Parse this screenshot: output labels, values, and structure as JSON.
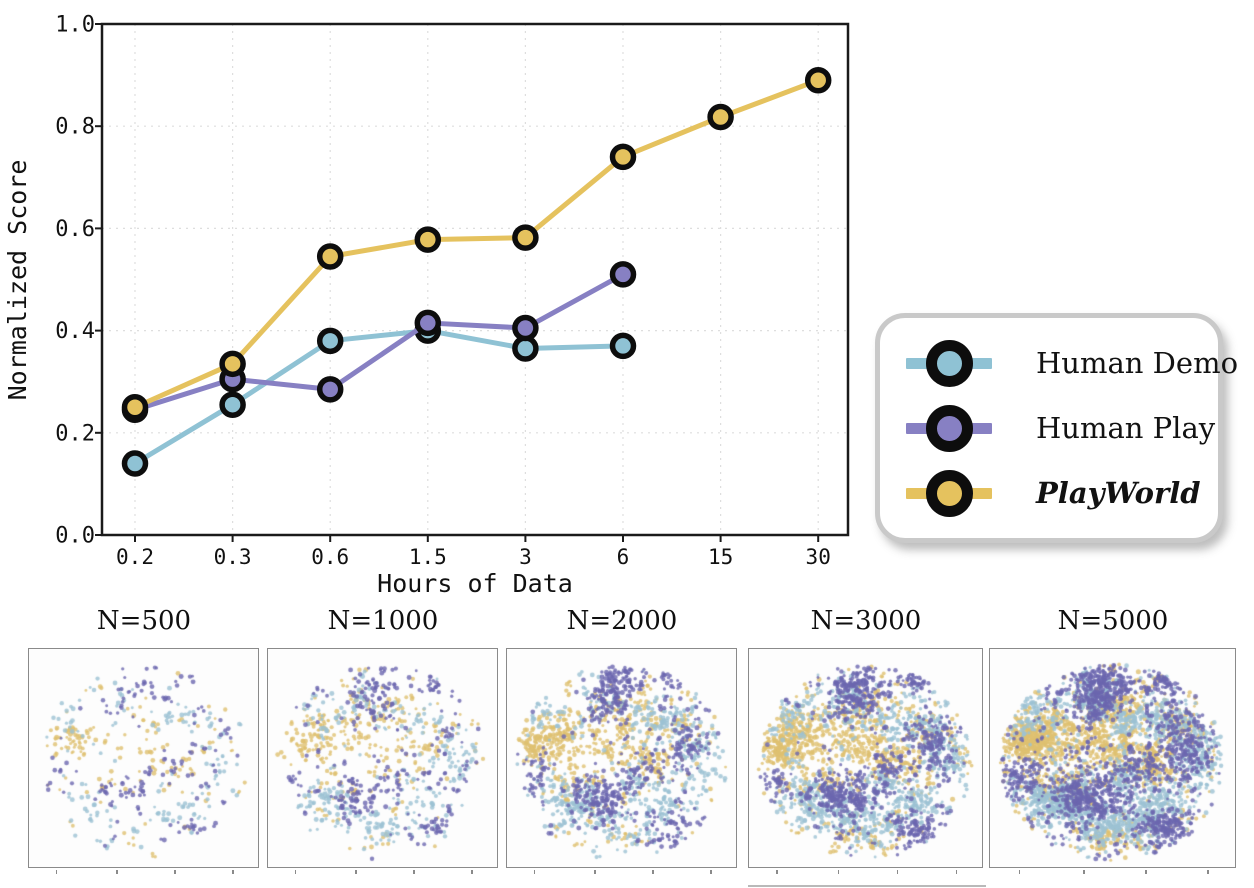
{
  "colors": {
    "human_demo": "#8FC2D4",
    "human_play": "#8780C3",
    "playworld": "#E5C25E",
    "marker_edge": "#0d0d0d",
    "grid": "#dedede",
    "spine": "#1a1a1a",
    "panel_border": "#8a8a8a",
    "legend_border": "#c9c9c9"
  },
  "chart_data": [
    {
      "type": "line",
      "title": "",
      "xlabel": "Hours of Data",
      "ylabel": "Normalized Score",
      "x_scale": "log-like categorical (evenly spaced ticks)",
      "categories": [
        "0.2",
        "0.3",
        "0.6",
        "1.5",
        "3",
        "6",
        "15",
        "30"
      ],
      "y_ticks": [
        "0.0",
        "0.2",
        "0.4",
        "0.6",
        "0.8",
        "1.0"
      ],
      "ylim": [
        0,
        1
      ],
      "grid": true,
      "legend_position": "outside-right-box",
      "series": [
        {
          "name": "Human Demo",
          "color": "#8FC2D4",
          "values": [
            0.14,
            0.255,
            0.38,
            0.4,
            0.365,
            0.37,
            null,
            null
          ]
        },
        {
          "name": "Human Play",
          "color": "#8780C3",
          "values": [
            0.245,
            0.305,
            0.285,
            0.415,
            0.405,
            0.51,
            null,
            null
          ]
        },
        {
          "name": "PlayWorld",
          "color": "#E5C25E",
          "values": [
            0.25,
            0.335,
            0.545,
            0.578,
            0.582,
            0.74,
            0.818,
            0.89
          ]
        }
      ]
    },
    {
      "type": "scatter",
      "subtype": "t-SNE embedding panels, subsampled dataset sizes",
      "panels": [
        {
          "label": "N=500",
          "n": 500
        },
        {
          "label": "N=1000",
          "n": 1000
        },
        {
          "label": "N=2000",
          "n": 2000
        },
        {
          "label": "N=3000",
          "n": 3000
        },
        {
          "label": "N=5000",
          "n": 5000
        }
      ],
      "point_colors": {
        "human_demo": "#9CC2D3",
        "human_play": "#6C66AF",
        "playworld": "#DFC170"
      },
      "blob": {
        "cx": 0.5,
        "cy": 0.52,
        "rx": 0.46,
        "ry": 0.45
      },
      "clusters": {
        "playworld": [
          [
            0.16,
            0.44,
            0.055,
            0.045,
            2.2
          ],
          [
            0.24,
            0.36,
            0.06,
            0.05,
            1.2
          ],
          [
            0.46,
            0.44,
            0.09,
            0.06,
            1.6
          ],
          [
            0.5,
            0.28,
            0.07,
            0.05,
            1.2
          ],
          [
            0.63,
            0.52,
            0.06,
            0.05,
            1.0
          ],
          [
            0.75,
            0.35,
            0.05,
            0.04,
            0.6
          ],
          [
            0.48,
            0.87,
            0.06,
            0.03,
            0.5
          ],
          [
            0.3,
            0.62,
            0.08,
            0.05,
            0.7
          ],
          [
            -1,
            -1,
            0,
            0,
            2.5
          ]
        ],
        "human_demo": [
          [
            0.27,
            0.7,
            0.07,
            0.05,
            1.8
          ],
          [
            0.5,
            0.8,
            0.09,
            0.05,
            1.6
          ],
          [
            0.83,
            0.5,
            0.05,
            0.07,
            1.2
          ],
          [
            0.66,
            0.33,
            0.09,
            0.045,
            1.4
          ],
          [
            0.42,
            0.23,
            0.05,
            0.05,
            0.8
          ],
          [
            0.18,
            0.3,
            0.05,
            0.06,
            0.7
          ],
          [
            0.7,
            0.72,
            0.06,
            0.04,
            0.8
          ],
          [
            0.57,
            0.6,
            0.05,
            0.04,
            0.5
          ],
          [
            -1,
            -1,
            0,
            0,
            1.8
          ]
        ],
        "human_play": [
          [
            0.4,
            0.68,
            0.075,
            0.055,
            2.0
          ],
          [
            0.47,
            0.16,
            0.06,
            0.05,
            1.3
          ],
          [
            0.44,
            0.26,
            0.05,
            0.04,
            0.8
          ],
          [
            0.79,
            0.44,
            0.055,
            0.08,
            1.3
          ],
          [
            0.72,
            0.82,
            0.06,
            0.04,
            1.0
          ],
          [
            0.73,
            0.13,
            0.05,
            0.035,
            0.7
          ],
          [
            0.12,
            0.6,
            0.03,
            0.04,
            0.4
          ],
          [
            0.6,
            0.55,
            0.05,
            0.05,
            0.5
          ],
          [
            -1,
            -1,
            0,
            0,
            1.5
          ]
        ]
      }
    }
  ]
}
